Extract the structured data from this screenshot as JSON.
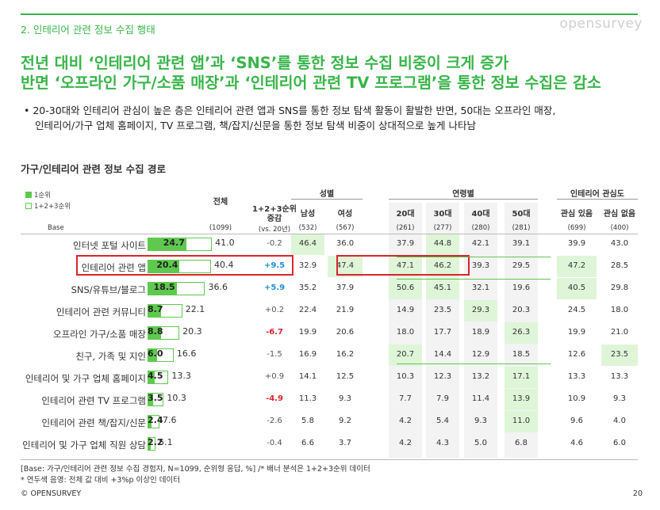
{
  "section_title": "2. 인테리어 관련 정보 수집 행태",
  "logo": "opensurvey",
  "headline_1": "전년 대비 ‘인테리어 관련 앱’과 ‘SNS’를 통한 정보 수집 비중이 크게 증가",
  "headline_2": "반면 ‘오프라인 가구/소품 매장’과 ‘인테리어 관련 TV 프로그램’을 통한 정보 수집은 감소",
  "bullet_1": "• 20-30대와 인테리어 관심이 높은 층은 인테리어 관련 앱과 SNS를 통한 정보 탐색 활동이 활발한 반면, 50대는 오프라인 매장,",
  "bullet_2": "인테리어/가구 업체 홈페이지, TV 프로그램, 책/잡지/신문을 통한 정보 탐색 비중이 상대적으로 높게 나타남",
  "chart_title": "가구/인테리어 관련 정보 수집 경로",
  "legend": {
    "first": "1순위",
    "total": "1+2+3순위"
  },
  "headers": {
    "total": "전체",
    "change_1": "1+2+3순위",
    "change_2": "증감",
    "gender": "성별",
    "age": "연령별",
    "interest": "인테리어 관심도",
    "cols": [
      "남성",
      "여성",
      "20대",
      "30대",
      "40대",
      "50대",
      "관심 있음",
      "관심 없음"
    ]
  },
  "base": {
    "label": "Base",
    "total": "(1099)",
    "change": "(vs. 20년)",
    "cols": [
      "(532)",
      "(567)",
      "(261)",
      "(277)",
      "(280)",
      "(281)",
      "(699)",
      "(400)"
    ]
  },
  "colors": {
    "accent": "#39b54a",
    "bar": "#5ec94e",
    "highlight": "#dff5d8",
    "positive": "#1f8fe0",
    "negative": "#d9252f",
    "neutral": "#555555",
    "redbox": "#d9252f"
  },
  "chart_data": {
    "type": "bar",
    "title": "가구/인테리어 관련 정보 수집 경로",
    "categories": [
      "인터넷 포털 사이트",
      "인테리어 관련 앱",
      "SNS/유튜브/블로그",
      "인테리어 관련 커뮤니티",
      "오프라인 가구/소품 매장",
      "친구, 가족 및 지인",
      "인테리어 및 가구 업체 홈페이지",
      "인테리어 관련 TV 프로그램",
      "인테리어 관련 책/잡지/신문",
      "인테리어 및 가구 업체 직원 상담"
    ],
    "series": [
      {
        "name": "1순위",
        "values": [
          24.7,
          20.4,
          18.5,
          8.7,
          8.8,
          6.0,
          4.5,
          3.5,
          2.4,
          2.2
        ]
      },
      {
        "name": "1+2+3순위",
        "values": [
          41.0,
          40.4,
          36.6,
          22.1,
          20.3,
          16.6,
          13.3,
          10.3,
          7.6,
          5.1
        ]
      }
    ],
    "change_labels": [
      "-0.2",
      "+9.5",
      "+5.9",
      "+0.2",
      "-6.7",
      "-1.5",
      "+0.9",
      "-4.9",
      "-2.6",
      "-0.4"
    ],
    "change_style": [
      "neutral",
      "positive",
      "positive",
      "neutral",
      "negative",
      "neutral",
      "neutral",
      "negative",
      "neutral",
      "neutral"
    ],
    "breakdown_columns": [
      "남성",
      "여성",
      "20대",
      "30대",
      "40대",
      "50대",
      "관심 있음",
      "관심 없음"
    ],
    "breakdown": [
      [
        "46.4",
        "36.0",
        "37.9",
        "44.8",
        "42.1",
        "39.1",
        "39.9",
        "43.0"
      ],
      [
        "32.9",
        "47.4",
        "47.1",
        "46.2",
        "39.3",
        "29.5",
        "47.2",
        "28.5"
      ],
      [
        "35.2",
        "37.9",
        "50.6",
        "45.1",
        "32.1",
        "19.6",
        "40.5",
        "29.8"
      ],
      [
        "22.4",
        "21.9",
        "14.9",
        "23.5",
        "29.3",
        "20.3",
        "24.5",
        "18.0"
      ],
      [
        "19.9",
        "20.6",
        "18.0",
        "17.7",
        "18.9",
        "26.3",
        "19.9",
        "21.0"
      ],
      [
        "16.9",
        "16.2",
        "20.7",
        "14.4",
        "12.9",
        "18.5",
        "12.6",
        "23.5"
      ],
      [
        "14.1",
        "12.5",
        "10.3",
        "12.3",
        "13.2",
        "17.1",
        "13.3",
        "13.3"
      ],
      [
        "11.3",
        "9.3",
        "7.7",
        "7.9",
        "11.4",
        "13.9",
        "10.9",
        "9.3"
      ],
      [
        "5.8",
        "9.2",
        "4.2",
        "5.4",
        "9.3",
        "11.0",
        "9.6",
        "4.0"
      ],
      [
        "6.6",
        "3.7",
        "4.2",
        "4.3",
        "5.0",
        "6.8",
        "4.6",
        "6.0"
      ]
    ],
    "highlighted": [
      [
        true,
        false,
        false,
        true,
        false,
        false,
        false,
        false
      ],
      [
        false,
        true,
        true,
        true,
        false,
        false,
        true,
        false
      ],
      [
        false,
        false,
        true,
        true,
        false,
        false,
        true,
        false
      ],
      [
        false,
        false,
        false,
        false,
        true,
        false,
        false,
        false
      ],
      [
        false,
        false,
        false,
        false,
        false,
        true,
        false,
        false
      ],
      [
        false,
        false,
        true,
        false,
        false,
        false,
        false,
        true
      ],
      [
        false,
        false,
        false,
        false,
        false,
        true,
        false,
        false
      ],
      [
        false,
        false,
        false,
        false,
        false,
        true,
        false,
        false
      ],
      [
        false,
        false,
        false,
        false,
        false,
        true,
        false,
        false
      ],
      [
        false,
        false,
        false,
        false,
        false,
        false,
        false,
        false
      ]
    ]
  },
  "footnote_1": "[Base: 가구/인테리어 관련 정보 수집 경험자, N=1099, 순위형 응답, %] /* 배너 분석은 1+2+3순위 데이터",
  "footnote_2": "* 연두색 음영: 전체 값 대비 +3%p 이상인 데이터",
  "copyright": "© OPENSURVEY",
  "page_number": "20"
}
